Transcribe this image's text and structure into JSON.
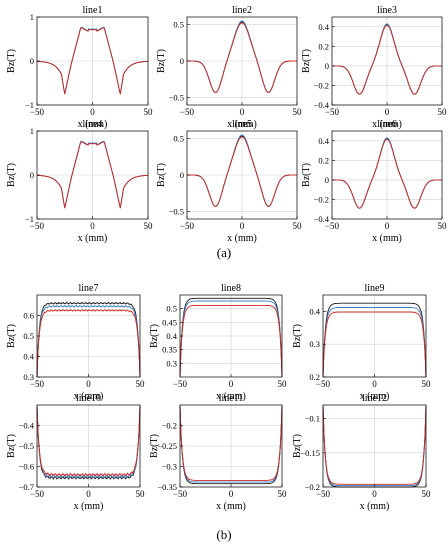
{
  "captions": {
    "a": "(a)",
    "b": "(b)"
  },
  "colors": {
    "c1": "#1a1a1a",
    "c2": "#3a7fc8",
    "c3": "#cc2a22",
    "grid": "#d0d0d0"
  },
  "chart_data": [
    {
      "type": "line",
      "title": "line1",
      "xlabel": "x (mm)",
      "ylabel": "Bz(T)",
      "xlim": [
        -50,
        50
      ],
      "ylim": [
        -1,
        1
      ],
      "xticks": [
        "−50",
        "0",
        "50"
      ],
      "yticks": [
        "−1",
        "0",
        "1"
      ],
      "grid": true,
      "legend": "none",
      "shape": "flat",
      "amp": 0.72,
      "spread": [
        0,
        0.03,
        -0.02
      ]
    },
    {
      "type": "line",
      "title": "line2",
      "xlabel": "x (mm)",
      "ylabel": "Bz(T)",
      "xlim": [
        -50,
        50
      ],
      "ylim": [
        -0.6,
        0.6
      ],
      "xticks": [
        "−50",
        "0",
        "50"
      ],
      "yticks": [
        "−0.5",
        "0",
        "0.5"
      ],
      "grid": true,
      "legend": "none",
      "shape": "peak",
      "amp": 0.53,
      "spread": [
        0,
        0.015,
        -0.01
      ]
    },
    {
      "type": "line",
      "title": "line3",
      "xlabel": "x (mm)",
      "ylabel": "Bz(T)",
      "xlim": [
        -50,
        50
      ],
      "ylim": [
        -0.4,
        0.5
      ],
      "xticks": [
        "−50",
        "0",
        "50"
      ],
      "yticks": [
        "−0.4",
        "−0.2",
        "0",
        "0.2",
        "0.4"
      ],
      "grid": true,
      "legend": "none",
      "shape": "peak3",
      "amp": 0.42,
      "spread": [
        0,
        0.01,
        -0.005
      ]
    },
    {
      "type": "line",
      "title": "line4",
      "xlabel": "x (mm)",
      "ylabel": "Bz(T)",
      "xlim": [
        -50,
        50
      ],
      "ylim": [
        -1,
        1
      ],
      "xticks": [
        "−50",
        "0",
        "50"
      ],
      "yticks": [
        "−1",
        "0",
        "1"
      ],
      "grid": true,
      "legend": "none",
      "shape": "flat",
      "amp": 0.72,
      "spread": [
        0,
        0.03,
        -0.02
      ]
    },
    {
      "type": "line",
      "title": "line5",
      "xlabel": "x (mm)",
      "ylabel": "Bz(T)",
      "xlim": [
        -50,
        50
      ],
      "ylim": [
        -0.6,
        0.6
      ],
      "xticks": [
        "−50",
        "0",
        "50"
      ],
      "yticks": [
        "−0.5",
        "0",
        "0.5"
      ],
      "grid": true,
      "legend": "none",
      "shape": "peak",
      "amp": 0.53,
      "spread": [
        0,
        0.015,
        -0.01
      ]
    },
    {
      "type": "line",
      "title": "line6",
      "xlabel": "x (mm)",
      "ylabel": "Bz(T)",
      "xlim": [
        -50,
        50
      ],
      "ylim": [
        -0.4,
        0.5
      ],
      "xticks": [
        "−50",
        "0",
        "50"
      ],
      "yticks": [
        "−0.4",
        "−0.2",
        "0",
        "0.2",
        "0.4"
      ],
      "grid": true,
      "legend": "none",
      "shape": "peak3",
      "amp": 0.42,
      "spread": [
        0,
        0.01,
        -0.005
      ]
    },
    {
      "type": "line",
      "title": "line7",
      "xlabel": "x (mm)",
      "ylabel": "Bz(T)",
      "xlim": [
        -50,
        50
      ],
      "ylim": [
        0.3,
        0.7
      ],
      "xticks": [
        "−50",
        "0",
        "50"
      ],
      "yticks": [
        "0.3",
        "0.4",
        "0.5",
        "0.6"
      ],
      "grid": true,
      "legend": "none",
      "shape": "plateau",
      "levels": [
        0.66,
        0.645,
        0.625
      ],
      "edge": 0.3,
      "noise": 0.004
    },
    {
      "type": "line",
      "title": "line8",
      "xlabel": "x (mm)",
      "ylabel": "Bz(T)",
      "xlim": [
        -50,
        50
      ],
      "ylim": [
        0.25,
        0.55
      ],
      "xticks": [
        "−50",
        "0",
        "50"
      ],
      "yticks": [
        "0.3",
        "0.35",
        "0.4",
        "0.45",
        "0.5"
      ],
      "grid": true,
      "legend": "none",
      "shape": "plateau",
      "levels": [
        0.538,
        0.528,
        0.512
      ],
      "edge": 0.25,
      "noise": 0.0
    },
    {
      "type": "line",
      "title": "line9",
      "xlabel": "x (mm)",
      "ylabel": "Bz(T)",
      "xlim": [
        -50,
        50
      ],
      "ylim": [
        0.2,
        0.45
      ],
      "xticks": [
        "−50",
        "0",
        "50"
      ],
      "yticks": [
        "0.2",
        "0.3",
        "0.4"
      ],
      "grid": true,
      "legend": "none",
      "shape": "plateau",
      "levels": [
        0.425,
        0.412,
        0.398
      ],
      "edge": 0.2,
      "noise": 0.0
    },
    {
      "type": "line",
      "title": "line10",
      "xlabel": "x (mm)",
      "ylabel": "Bz(T)",
      "xlim": [
        -50,
        50
      ],
      "ylim": [
        -0.7,
        -0.3
      ],
      "xticks": [
        "−50",
        "0",
        "50"
      ],
      "yticks": [
        "−0.4",
        "−0.5",
        "−0.6",
        "−0.7"
      ],
      "grid": true,
      "legend": "none",
      "shape": "trough",
      "levels": [
        -0.655,
        -0.648,
        -0.64
      ],
      "edge": -0.3,
      "noise": 0.006
    },
    {
      "type": "line",
      "title": "line11",
      "xlabel": "x (mm)",
      "ylabel": "Bz(T)",
      "xlim": [
        -50,
        50
      ],
      "ylim": [
        -0.35,
        -0.15
      ],
      "xticks": [
        "−50",
        "0",
        "50"
      ],
      "yticks": [
        "−0.2",
        "−0.25",
        "−0.3",
        "−0.35"
      ],
      "grid": true,
      "legend": "none",
      "shape": "trough",
      "levels": [
        -0.342,
        -0.338,
        -0.334
      ],
      "edge": -0.15,
      "noise": 0.0
    },
    {
      "type": "line",
      "title": "line12",
      "xlabel": "x (mm)",
      "ylabel": "Bz(T)",
      "xlim": [
        -50,
        50
      ],
      "ylim": [
        -0.2,
        -0.08
      ],
      "xticks": [
        "−50",
        "0",
        "50"
      ],
      "yticks": [
        "−0.1",
        "−0.15",
        "−0.2"
      ],
      "grid": true,
      "legend": "none",
      "shape": "trough",
      "levels": [
        -0.2,
        -0.198,
        -0.196
      ],
      "edge": -0.08,
      "noise": 0.0
    }
  ]
}
